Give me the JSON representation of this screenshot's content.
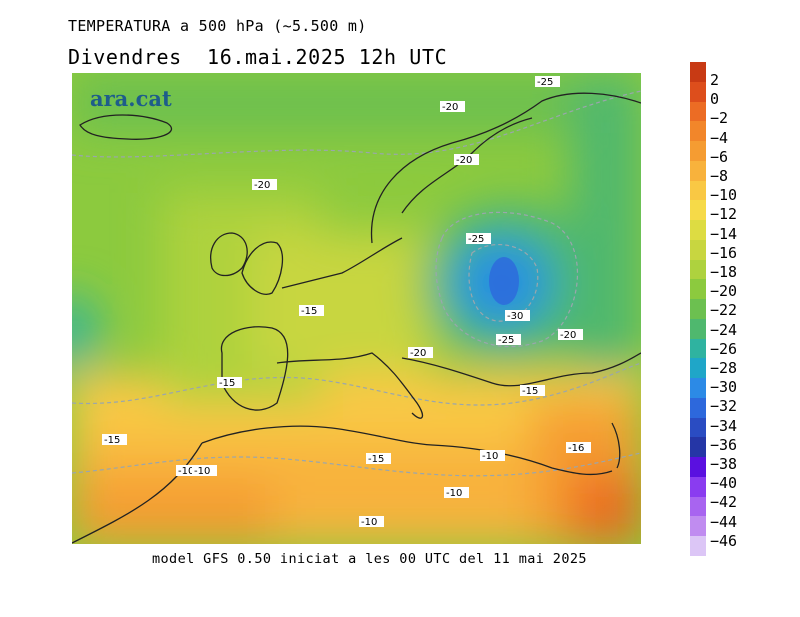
{
  "header": {
    "title": "TEMPERATURA a 500 hPa (~5.500 m)",
    "subtitle": "Divendres  16.mai.2025 12h UTC"
  },
  "map": {
    "brand": "ara.cat",
    "land_outline_color": "#222222",
    "contour_color": "#9aa6ad",
    "contour_labels": [
      "-25",
      "-20",
      "-20",
      "-20",
      "-25",
      "-15",
      "-30",
      "-25",
      "-20",
      "-20",
      "-15",
      "-15",
      "-15",
      "-15",
      "-16",
      "-10",
      "-10",
      "-10",
      "-10",
      "-10"
    ]
  },
  "footer": {
    "text": "model GFS 0.50 iniciat a les 00 UTC del 11 mai 2025"
  },
  "legend": {
    "labels": [
      "2",
      "0",
      "−2",
      "−4",
      "−6",
      "−8",
      "−10",
      "−12",
      "−14",
      "−16",
      "−18",
      "−20",
      "−22",
      "−24",
      "−26",
      "−28",
      "−30",
      "−32",
      "−34",
      "−36",
      "−38",
      "−40",
      "−42",
      "−44",
      "−46"
    ],
    "colors": [
      "#c83a14",
      "#dd4e1c",
      "#ec6c24",
      "#f2862a",
      "#f59c32",
      "#f8b23c",
      "#f9c844",
      "#f6da48",
      "#dddc42",
      "#c8d640",
      "#aed23e",
      "#8cca3e",
      "#6cc050",
      "#4fb86e",
      "#2fb3a0",
      "#1fa6c8",
      "#2c8ae6",
      "#2d68dc",
      "#2a4cc2",
      "#2536a6",
      "#5a10e0",
      "#8a3cf0",
      "#a864f0",
      "#c08cf0",
      "#dcc6f6"
    ]
  }
}
